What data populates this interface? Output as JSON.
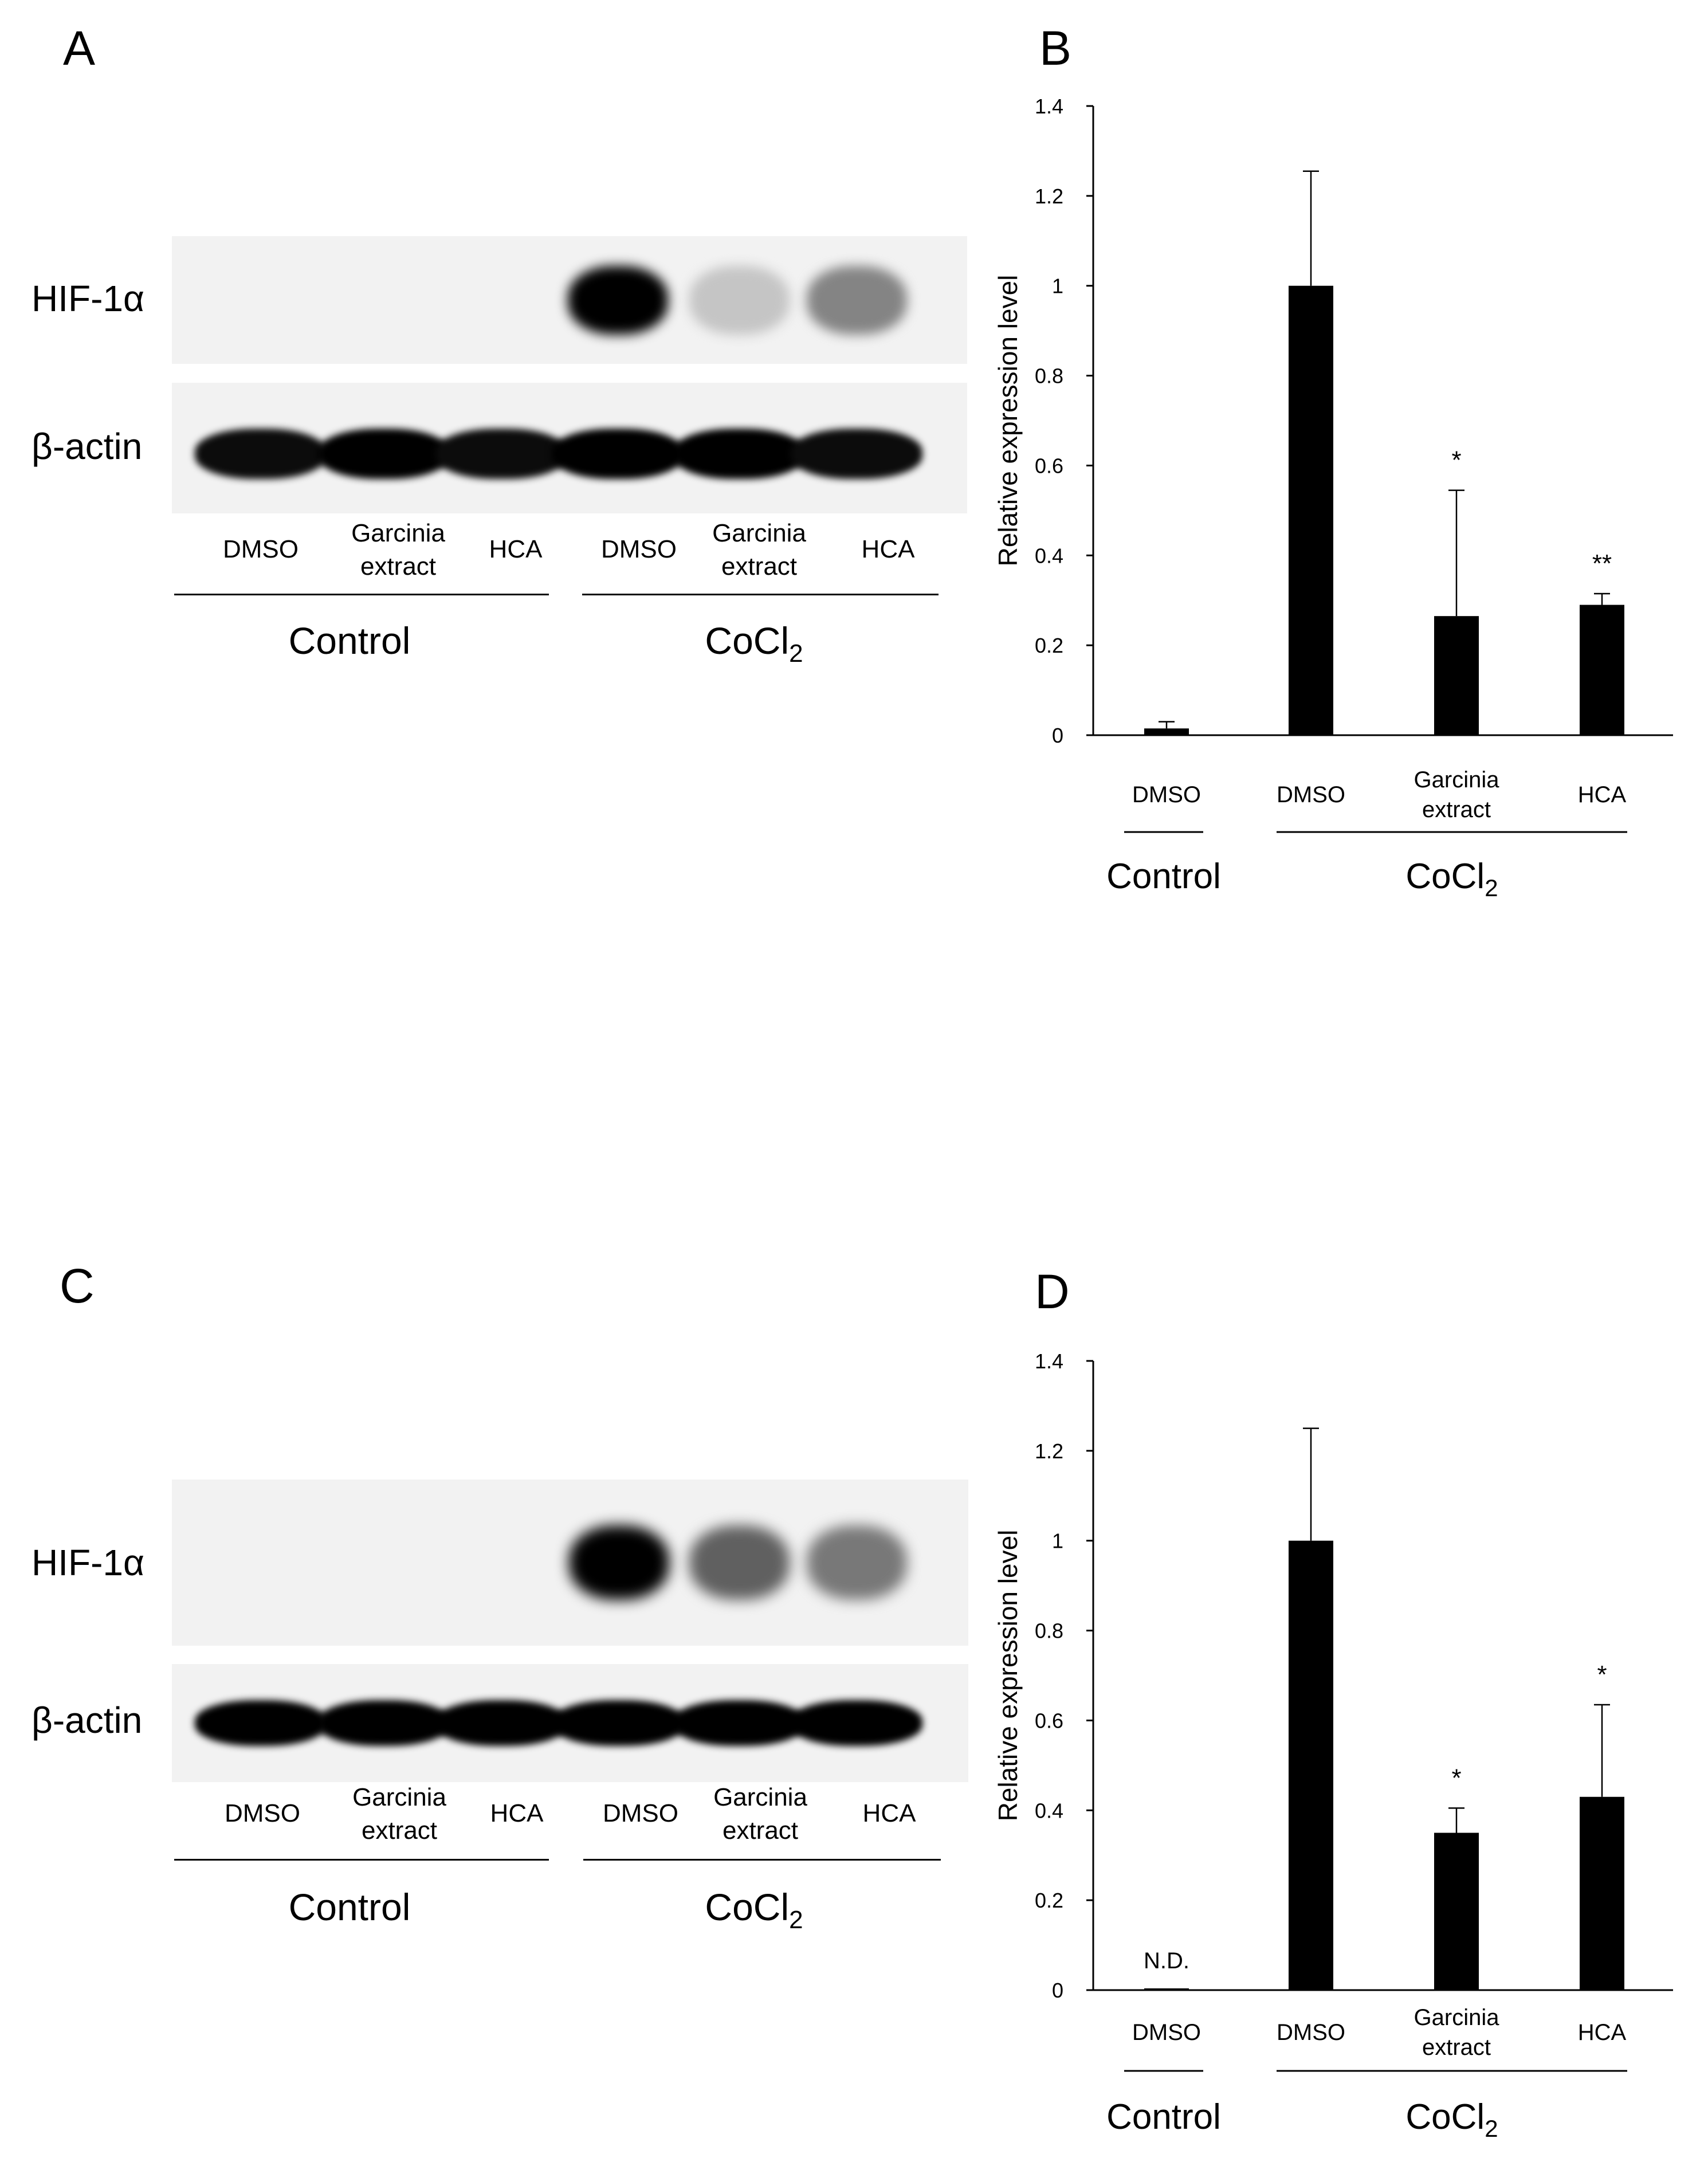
{
  "panels": {
    "A": "A",
    "B": "B",
    "C": "C",
    "D": "D"
  },
  "blots": [
    {
      "protein_labels": {
        "top": "HIF-1α",
        "bottom": "β-actin"
      },
      "lanes": [
        "DMSO",
        "Garcinia\nextract",
        "HCA",
        "DMSO",
        "Garcinia\nextract",
        "HCA"
      ],
      "groups": {
        "control": "Control",
        "treatment": "CoCl",
        "treatment_sub": "2"
      },
      "hif_band_intensity": [
        0.0,
        0.0,
        0.0,
        1.0,
        0.18,
        0.45
      ],
      "actin_band_intensity": [
        0.95,
        1.0,
        0.95,
        1.0,
        1.0,
        0.95
      ]
    },
    {
      "protein_labels": {
        "top": "HIF-1α",
        "bottom": "β-actin"
      },
      "lanes": [
        "DMSO",
        "Garcinia\nextract",
        "HCA",
        "DMSO",
        "Garcinia\nextract",
        "HCA"
      ],
      "groups": {
        "control": "Control",
        "treatment": "CoCl",
        "treatment_sub": "2"
      },
      "hif_band_intensity": [
        0.0,
        0.0,
        0.0,
        1.0,
        0.6,
        0.5
      ],
      "actin_band_intensity": [
        1.0,
        1.0,
        1.0,
        1.0,
        1.0,
        1.0
      ]
    }
  ],
  "chart_data": [
    {
      "type": "bar",
      "ylabel": "Relative expression level",
      "ylim": [
        0,
        1.4
      ],
      "yticks": [
        "0",
        "0.2",
        "0.4",
        "0.6",
        "0.8",
        "1",
        "1.2",
        "1.4"
      ],
      "categories": [
        "DMSO",
        "DMSO",
        "Garcinia\nextract",
        "HCA"
      ],
      "values": [
        0.015,
        1.0,
        0.265,
        0.29
      ],
      "errors": [
        0.015,
        0.255,
        0.28,
        0.025
      ],
      "annotations": [
        "",
        "",
        "*",
        "**"
      ],
      "groups": {
        "control": "Control",
        "treatment": "CoCl",
        "treatment_sub": "2"
      },
      "bar_color": "#000000"
    },
    {
      "type": "bar",
      "ylabel": "Relative expression level",
      "ylim": [
        0,
        1.4
      ],
      "yticks": [
        "0",
        "0.2",
        "0.4",
        "0.6",
        "0.8",
        "1",
        "1.2",
        "1.4"
      ],
      "categories": [
        "DMSO",
        "DMSO",
        "Garcinia\nextract",
        "HCA"
      ],
      "values": [
        0.0,
        1.0,
        0.35,
        0.43
      ],
      "errors": [
        0.0,
        0.25,
        0.055,
        0.205
      ],
      "annotations": [
        "N.D.",
        "",
        "*",
        "*"
      ],
      "groups": {
        "control": "Control",
        "treatment": "CoCl",
        "treatment_sub": "2"
      },
      "bar_color": "#000000"
    }
  ]
}
